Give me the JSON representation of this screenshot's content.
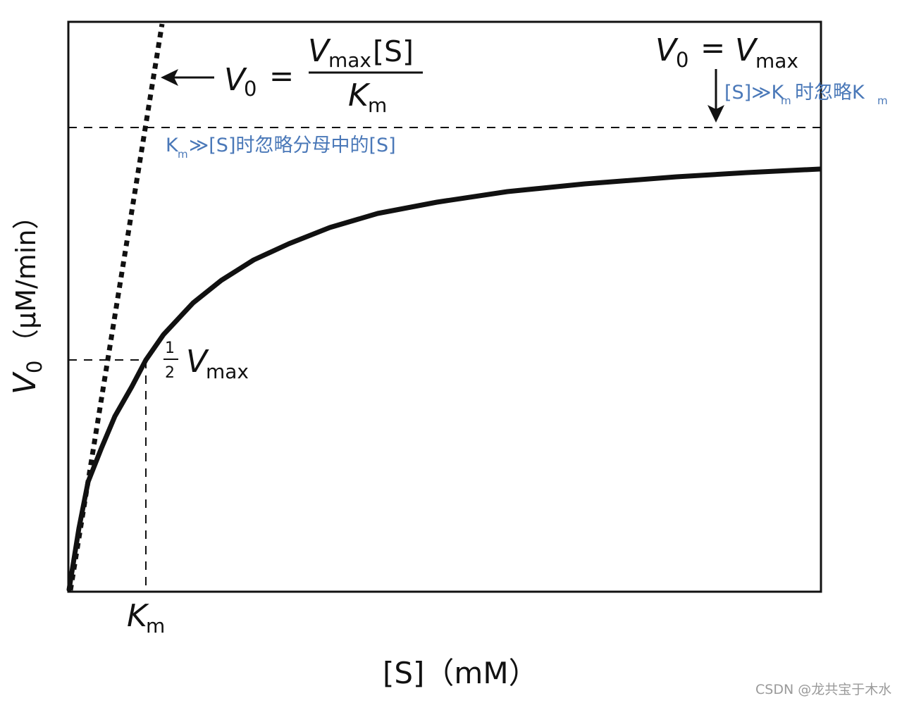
{
  "diagram": {
    "axis_labels": {
      "y": {
        "v": "V",
        "sub": "0",
        "unit": "（μM/min）"
      },
      "x": {
        "main": "[S]（mM）"
      },
      "km": {
        "main": "K",
        "sub": "m"
      }
    },
    "equations": {
      "low_substrate": {
        "lhs_v": "V",
        "lhs_sub": "0",
        "equals": "=",
        "numerator_v": "V",
        "numerator_sub": "max",
        "numerator_s": "[S]",
        "denominator_k": "K",
        "denominator_sub": "m"
      },
      "high_substrate": {
        "lhs_v": "V",
        "lhs_sub": "0",
        "equals": "=",
        "rhs_v": "V",
        "rhs_sub": "max"
      },
      "half_vmax": {
        "numerator": "1",
        "denominator": "2",
        "v": "V",
        "sub": "max"
      }
    },
    "annotations": {
      "high_substrate": {
        "prefix": "[S]≫K",
        "sub1": "m",
        "middle": "时忽略K",
        "sub2": "m"
      },
      "low_substrate": {
        "prefix": "K",
        "sub": "m",
        "suffix": "≫[S]时忽略分母中的[S]"
      }
    },
    "watermark": "CSDN @龙共宝于木水",
    "colors": {
      "ink": "#111111",
      "annotation": "#4a78b8",
      "watermark": "#9a9a9a"
    }
  }
}
